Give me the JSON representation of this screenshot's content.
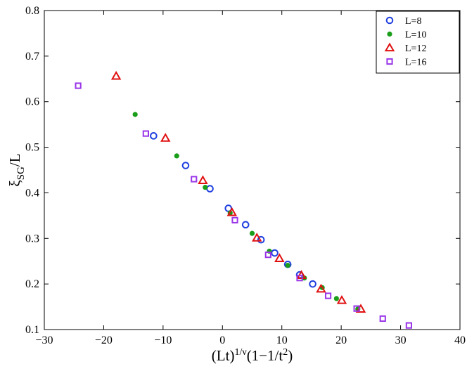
{
  "chart_data": {
    "type": "scatter",
    "title": "",
    "xlabel": {
      "base": "(Lt)",
      "superscript": "1/ν",
      "middle": "(1−1/t",
      "superscript2": "2",
      "end": ")"
    },
    "ylabel": {
      "base": "ξ",
      "subscript": "SG",
      "end": "/L"
    },
    "xlim": [
      -30,
      40
    ],
    "ylim": [
      0.1,
      0.8
    ],
    "xticks": [
      -30,
      -20,
      -10,
      0,
      10,
      20,
      30,
      40
    ],
    "yticks": [
      0.1,
      0.2,
      0.3,
      0.4,
      0.5,
      0.6,
      0.7,
      0.8
    ],
    "grid": false,
    "legend_position": "top-right",
    "series": [
      {
        "name": "L=8",
        "marker": "circle",
        "color": "#1f3fe0",
        "points": [
          [
            -11.6,
            0.525
          ],
          [
            -6.2,
            0.46
          ],
          [
            -2.1,
            0.409
          ],
          [
            1.0,
            0.366
          ],
          [
            3.9,
            0.33
          ],
          [
            6.5,
            0.297
          ],
          [
            8.8,
            0.268
          ],
          [
            11.0,
            0.243
          ],
          [
            13.0,
            0.22
          ],
          [
            15.2,
            0.2
          ]
        ]
      },
      {
        "name": "L=10",
        "marker": "dot",
        "color": "#1a9e1a",
        "points": [
          [
            -14.7,
            0.572
          ],
          [
            -7.7,
            0.481
          ],
          [
            -2.9,
            0.412
          ],
          [
            1.3,
            0.356
          ],
          [
            5.0,
            0.311
          ],
          [
            7.9,
            0.272
          ],
          [
            11.0,
            0.241
          ],
          [
            13.8,
            0.213
          ],
          [
            16.8,
            0.192
          ],
          [
            19.2,
            0.168
          ],
          [
            22.8,
            0.145
          ]
        ]
      },
      {
        "name": "L=12",
        "marker": "triangle",
        "color": "#e01010",
        "points": [
          [
            -17.9,
            0.656
          ],
          [
            -9.6,
            0.52
          ],
          [
            -3.3,
            0.427
          ],
          [
            1.6,
            0.357
          ],
          [
            5.8,
            0.301
          ],
          [
            9.6,
            0.256
          ],
          [
            13.3,
            0.219
          ],
          [
            16.6,
            0.189
          ],
          [
            20.1,
            0.164
          ],
          [
            23.3,
            0.145
          ]
        ]
      },
      {
        "name": "L=16",
        "marker": "square",
        "color": "#9a36e8",
        "points": [
          [
            -24.3,
            0.635
          ],
          [
            -12.9,
            0.53
          ],
          [
            -4.8,
            0.43
          ],
          [
            2.1,
            0.34
          ],
          [
            7.7,
            0.264
          ],
          [
            13.0,
            0.213
          ],
          [
            17.8,
            0.174
          ],
          [
            22.6,
            0.146
          ],
          [
            27.0,
            0.124
          ],
          [
            31.4,
            0.109
          ]
        ]
      }
    ]
  }
}
